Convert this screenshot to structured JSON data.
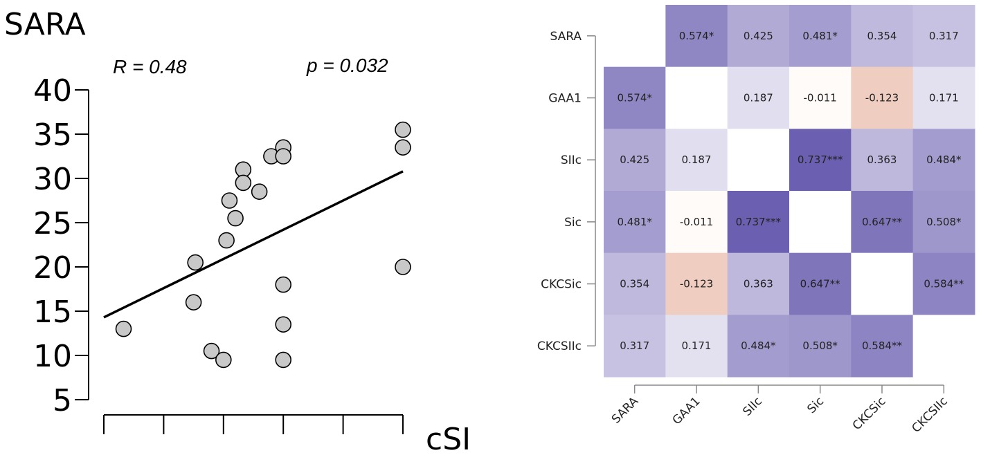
{
  "chart_data": [
    {
      "type": "scatter",
      "title": "SARA",
      "xlabel": "cSI",
      "ylabel": "SARA",
      "annotations": {
        "r": "R = 0.48",
        "p": "p = 0.032"
      },
      "ylim": [
        5,
        40
      ],
      "yticks": [
        "40",
        "35",
        "30",
        "25",
        "20",
        "15",
        "10",
        "5"
      ],
      "xlim": [
        0,
        5
      ],
      "xticks_count": 6,
      "regression": {
        "x": [
          0,
          5
        ],
        "y": [
          14.3,
          30.8
        ]
      },
      "points": [
        {
          "x": 0.33,
          "y": 13
        },
        {
          "x": 1.53,
          "y": 20.5
        },
        {
          "x": 1.5,
          "y": 16
        },
        {
          "x": 1.8,
          "y": 10.5
        },
        {
          "x": 2.0,
          "y": 9.5
        },
        {
          "x": 2.05,
          "y": 23
        },
        {
          "x": 2.1,
          "y": 27.5
        },
        {
          "x": 2.2,
          "y": 25.5
        },
        {
          "x": 2.33,
          "y": 31
        },
        {
          "x": 2.33,
          "y": 29.5
        },
        {
          "x": 2.6,
          "y": 28.5
        },
        {
          "x": 2.8,
          "y": 32.5
        },
        {
          "x": 3.0,
          "y": 33.5
        },
        {
          "x": 3.0,
          "y": 32.5
        },
        {
          "x": 3.0,
          "y": 18
        },
        {
          "x": 3.0,
          "y": 13.5
        },
        {
          "x": 3.0,
          "y": 9.5
        },
        {
          "x": 5.0,
          "y": 35.5
        },
        {
          "x": 5.0,
          "y": 33.5
        },
        {
          "x": 5.0,
          "y": 20
        }
      ]
    },
    {
      "type": "heatmap",
      "labels": [
        "SARA",
        "GAA1",
        "SIIc",
        "Sic",
        "CKCSic",
        "CKCSIIc"
      ],
      "values": [
        [
          null,
          0.574,
          0.425,
          0.481,
          0.354,
          0.317
        ],
        [
          0.574,
          null,
          0.187,
          -0.011,
          -0.123,
          0.171
        ],
        [
          0.425,
          0.187,
          null,
          0.737,
          0.363,
          0.484
        ],
        [
          0.481,
          -0.011,
          0.737,
          null,
          0.647,
          0.508
        ],
        [
          0.354,
          -0.123,
          0.363,
          0.647,
          null,
          0.584
        ],
        [
          0.317,
          0.171,
          0.484,
          0.508,
          0.584,
          null
        ]
      ],
      "cell_text": [
        [
          "",
          "0.574*",
          "0.425",
          "0.481*",
          "0.354",
          "0.317"
        ],
        [
          "0.574*",
          "",
          "0.187",
          "-0.011",
          "-0.123",
          "0.171"
        ],
        [
          "0.425",
          "0.187",
          "",
          "0.737***",
          "0.363",
          "0.484*"
        ],
        [
          "0.481*",
          "-0.011",
          "0.737***",
          "",
          "0.647**",
          "0.508*"
        ],
        [
          "0.354",
          "-0.123",
          "0.363",
          "0.647**",
          "",
          "0.584**"
        ],
        [
          "0.317",
          "0.171",
          "0.484*",
          "0.508*",
          "0.584**",
          ""
        ]
      ],
      "colors": {
        "positive": "#6a5fb0",
        "negative": "#e8b8a6",
        "empty": "#ffffff"
      }
    }
  ]
}
